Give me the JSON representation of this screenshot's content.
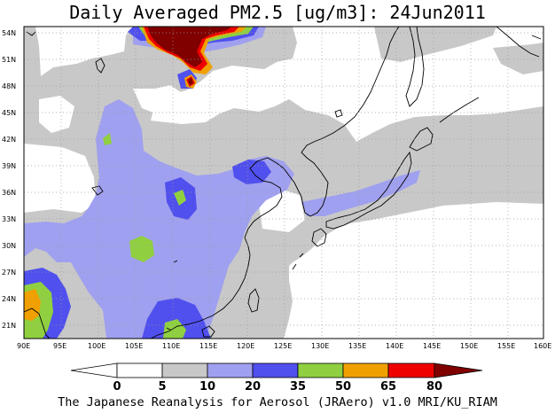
{
  "title": "Daily Averaged PM2.5 [ug/m3]: 24Jun2011",
  "credit": "The Japanese Reanalysis for Aerosol (JRAero) v1.0 MRI/KU_RIAM",
  "map": {
    "lon_range": [
      90,
      160
    ],
    "lat_range": [
      20,
      55
    ],
    "lon_ticks": [
      "90E",
      "95E",
      "100E",
      "105E",
      "110E",
      "115E",
      "120E",
      "125E",
      "130E",
      "135E",
      "140E",
      "145E",
      "150E",
      "155E",
      "160E"
    ],
    "lat_ticks": [
      "21N",
      "24N",
      "27N",
      "30N",
      "33N",
      "36N",
      "39N",
      "42N",
      "45N",
      "48N",
      "51N",
      "54N"
    ],
    "grid": "dotted",
    "colors": {
      "white": "#ffffff",
      "gray": "#c8c8c8",
      "light_blue": "#a0a0f0",
      "blue": "#5050ee",
      "green": "#90d040",
      "orange": "#f0a000",
      "red": "#ee0000",
      "dark_red": "#800000",
      "coast": "#000000"
    }
  },
  "colorbar": {
    "labels": [
      "0",
      "5",
      "10",
      "20",
      "35",
      "50",
      "65",
      "80"
    ],
    "colors": [
      "#ffffff",
      "#c8c8c8",
      "#a0a0f0",
      "#5050ee",
      "#90d040",
      "#f0a000",
      "#ee0000",
      "#800000"
    ]
  }
}
